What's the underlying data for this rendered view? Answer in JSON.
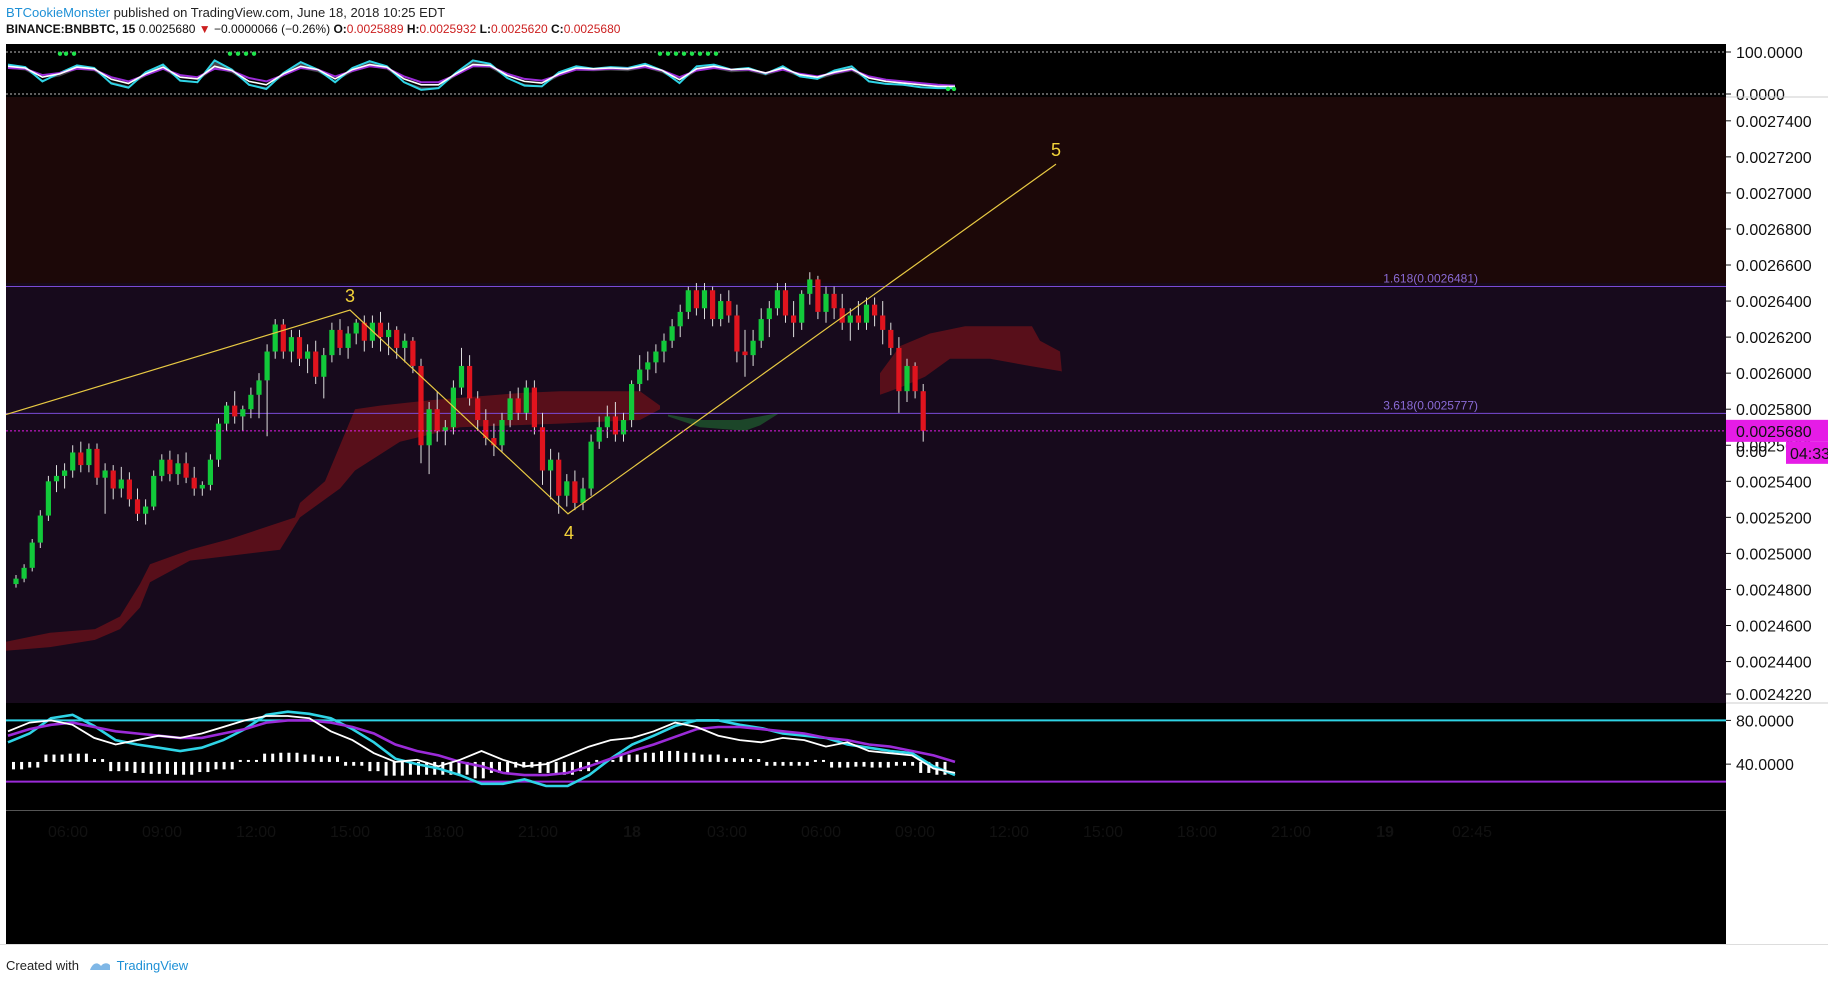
{
  "header": {
    "author": "BTCookieMonster",
    "published": "published on TradingView.com, June 18, 2018 10:25 EDT",
    "symbol": "BINANCE:BNBBTC, 15",
    "last": "0.0025680",
    "arrow": "▼",
    "change": "−0.0000066 (−0.26%)",
    "o_label": "O:",
    "o_value": "0.0025889",
    "h_label": "H:",
    "h_value": "0.0025932",
    "l_label": "L:",
    "l_value": "0.0025620",
    "c_label": "C:",
    "c_value": "0.0025680"
  },
  "footer": {
    "created_with": "Created with",
    "brand": "TradingView"
  },
  "colors": {
    "background": "#000000",
    "upper_zone": "#1c0808",
    "lower_zone": "#170a1c",
    "bull": "#12c93a",
    "bear": "#e0141e",
    "cloud": "#5c101a",
    "wave_line": "#e8c943",
    "fib_line": "#7a4ad6",
    "price_tag": "#e51ce6",
    "cyan": "#2fd4e6",
    "purple": "#9b2bd8",
    "white": "#ffffff"
  },
  "chart_data": [
    {
      "type": "line",
      "panel": "top-oscillator",
      "y_ticks": [
        "100.0000",
        "0.0000"
      ],
      "ylim": [
        0,
        100
      ],
      "series": [
        {
          "color": "cyan",
          "values": [
            70,
            64,
            30,
            50,
            68,
            62,
            25,
            15,
            52,
            70,
            32,
            28,
            80,
            58,
            22,
            12,
            50,
            76,
            58,
            28,
            62,
            78,
            66,
            28,
            10,
            14,
            50,
            80,
            72,
            38,
            20,
            18,
            52,
            66,
            60,
            64,
            62,
            72,
            56,
            26,
            66,
            70,
            58,
            62,
            48,
            66,
            42,
            36,
            56,
            66,
            30,
            24,
            22,
            16,
            14,
            14
          ]
        },
        {
          "color": "purple",
          "values": [
            62,
            60,
            45,
            50,
            60,
            58,
            40,
            30,
            45,
            60,
            45,
            40,
            60,
            55,
            38,
            30,
            45,
            62,
            58,
            42,
            55,
            66,
            62,
            42,
            28,
            28,
            45,
            66,
            66,
            48,
            36,
            32,
            45,
            58,
            58,
            60,
            60,
            64,
            56,
            40,
            56,
            62,
            58,
            58,
            50,
            58,
            48,
            42,
            50,
            58,
            42,
            34,
            30,
            26,
            22,
            20
          ]
        },
        {
          "color": "white",
          "values": [
            66,
            62,
            40,
            48,
            64,
            60,
            35,
            25,
            48,
            64,
            40,
            36,
            66,
            56,
            30,
            22,
            48,
            66,
            58,
            36,
            58,
            70,
            64,
            36,
            22,
            22,
            48,
            70,
            68,
            44,
            30,
            26,
            48,
            62,
            60,
            62,
            60,
            68,
            56,
            34,
            60,
            66,
            58,
            60,
            50,
            62,
            46,
            40,
            52,
            60,
            38,
            30,
            26,
            22,
            18,
            18
          ]
        }
      ]
    },
    {
      "type": "candlestick",
      "panel": "price",
      "y_ticks": [
        "0.0027400",
        "0.0027200",
        "0.0027000",
        "0.0026800",
        "0.0026600",
        "0.0026400",
        "0.0026200",
        "0.0026000",
        "0.0025800",
        "0.0025600",
        "0.0025400",
        "0.0025200",
        "0.0025000",
        "0.0024800",
        "0.0024600",
        "0.0024400",
        "0.0024220"
      ],
      "ylim": [
        0.002422,
        0.002746
      ],
      "x_ticks": [
        "06:00",
        "09:00",
        "12:00",
        "15:00",
        "18:00",
        "21:00",
        "18",
        "03:00",
        "06:00",
        "09:00",
        "12:00",
        "15:00",
        "18:00",
        "21:00",
        "19",
        "02:45"
      ],
      "ohlc": [
        [
          0.002483,
          0.002488,
          0.002481,
          0.002486
        ],
        [
          0.002486,
          0.002494,
          0.002484,
          0.002492
        ],
        [
          0.002492,
          0.002508,
          0.00249,
          0.002506
        ],
        [
          0.002506,
          0.002524,
          0.002503,
          0.002521
        ],
        [
          0.002521,
          0.002543,
          0.002518,
          0.00254
        ],
        [
          0.00254,
          0.002549,
          0.002534,
          0.002543
        ],
        [
          0.002543,
          0.00255,
          0.002536,
          0.002546
        ],
        [
          0.002546,
          0.00256,
          0.002542,
          0.002556
        ],
        [
          0.002556,
          0.002562,
          0.002545,
          0.002549
        ],
        [
          0.002549,
          0.002561,
          0.002545,
          0.002558
        ],
        [
          0.002558,
          0.002561,
          0.002538,
          0.002542
        ],
        [
          0.002542,
          0.00255,
          0.002522,
          0.002546
        ],
        [
          0.002546,
          0.002549,
          0.00253,
          0.002536
        ],
        [
          0.002536,
          0.002548,
          0.002531,
          0.002541
        ],
        [
          0.002541,
          0.002545,
          0.002526,
          0.00253
        ],
        [
          0.00253,
          0.002536,
          0.002518,
          0.002522
        ],
        [
          0.002522,
          0.00253,
          0.002516,
          0.002526
        ],
        [
          0.002526,
          0.002546,
          0.002524,
          0.002543
        ],
        [
          0.002543,
          0.002555,
          0.00254,
          0.002552
        ],
        [
          0.002552,
          0.002557,
          0.00254,
          0.002544
        ],
        [
          0.002544,
          0.002555,
          0.002538,
          0.00255
        ],
        [
          0.00255,
          0.002556,
          0.002539,
          0.002542
        ],
        [
          0.002542,
          0.002548,
          0.002532,
          0.002536
        ],
        [
          0.002536,
          0.00254,
          0.002532,
          0.002538
        ],
        [
          0.002538,
          0.002555,
          0.002535,
          0.002552
        ],
        [
          0.002552,
          0.002575,
          0.002548,
          0.002572
        ],
        [
          0.002572,
          0.002584,
          0.002568,
          0.002582
        ],
        [
          0.002582,
          0.00259,
          0.002572,
          0.002576
        ],
        [
          0.002576,
          0.002582,
          0.002568,
          0.00258
        ],
        [
          0.00258,
          0.002592,
          0.002575,
          0.002588
        ],
        [
          0.002588,
          0.0026,
          0.002575,
          0.002596
        ],
        [
          0.002596,
          0.002616,
          0.002565,
          0.002612
        ],
        [
          0.002612,
          0.00263,
          0.002608,
          0.002627
        ],
        [
          0.002627,
          0.00263,
          0.002608,
          0.002612
        ],
        [
          0.002612,
          0.002624,
          0.002606,
          0.00262
        ],
        [
          0.00262,
          0.002624,
          0.002604,
          0.002608
        ],
        [
          0.002608,
          0.002616,
          0.0026,
          0.002612
        ],
        [
          0.002612,
          0.002618,
          0.002594,
          0.002598
        ],
        [
          0.002598,
          0.002614,
          0.002586,
          0.00261
        ],
        [
          0.00261,
          0.002628,
          0.002606,
          0.002624
        ],
        [
          0.002624,
          0.00263,
          0.00261,
          0.002614
        ],
        [
          0.002614,
          0.002626,
          0.002608,
          0.002622
        ],
        [
          0.002622,
          0.00263,
          0.002616,
          0.002628
        ],
        [
          0.002628,
          0.002632,
          0.002612,
          0.002618
        ],
        [
          0.002618,
          0.002632,
          0.002614,
          0.002628
        ],
        [
          0.002628,
          0.002634,
          0.002612,
          0.00262
        ],
        [
          0.00262,
          0.002628,
          0.00261,
          0.002624
        ],
        [
          0.002624,
          0.002626,
          0.002608,
          0.002614
        ],
        [
          0.002614,
          0.002622,
          0.002606,
          0.002618
        ],
        [
          0.002618,
          0.00262,
          0.0026,
          0.002604
        ],
        [
          0.002604,
          0.002608,
          0.00255,
          0.00256
        ],
        [
          0.00256,
          0.002584,
          0.002544,
          0.00258
        ],
        [
          0.00258,
          0.00259,
          0.002562,
          0.002568
        ],
        [
          0.002568,
          0.002574,
          0.00256,
          0.00257
        ],
        [
          0.00257,
          0.002596,
          0.002566,
          0.002592
        ],
        [
          0.002592,
          0.002614,
          0.002588,
          0.002604
        ],
        [
          0.002604,
          0.00261,
          0.002582,
          0.002586
        ],
        [
          0.002586,
          0.00259,
          0.002568,
          0.002574
        ],
        [
          0.002574,
          0.00258,
          0.00256,
          0.002564
        ],
        [
          0.002564,
          0.002572,
          0.002554,
          0.00256
        ],
        [
          0.00256,
          0.002578,
          0.002556,
          0.002574
        ],
        [
          0.002574,
          0.00259,
          0.00257,
          0.002586
        ],
        [
          0.002586,
          0.002592,
          0.002574,
          0.002578
        ],
        [
          0.002578,
          0.002596,
          0.002574,
          0.002592
        ],
        [
          0.002592,
          0.002596,
          0.002566,
          0.00257
        ],
        [
          0.00257,
          0.002578,
          0.002538,
          0.002546
        ],
        [
          0.002546,
          0.002558,
          0.00253,
          0.002552
        ],
        [
          0.002552,
          0.002556,
          0.002522,
          0.002532
        ],
        [
          0.002532,
          0.002544,
          0.002526,
          0.00254
        ],
        [
          0.00254,
          0.002546,
          0.002524,
          0.002528
        ],
        [
          0.002528,
          0.002542,
          0.002524,
          0.002536
        ],
        [
          0.002536,
          0.002566,
          0.002532,
          0.002562
        ],
        [
          0.002562,
          0.002576,
          0.002558,
          0.00257
        ],
        [
          0.00257,
          0.002582,
          0.002564,
          0.002576
        ],
        [
          0.002576,
          0.002584,
          0.002562,
          0.002566
        ],
        [
          0.002566,
          0.002578,
          0.002562,
          0.002574
        ],
        [
          0.002574,
          0.002596,
          0.00257,
          0.002594
        ],
        [
          0.002594,
          0.00261,
          0.00259,
          0.002602
        ],
        [
          0.002602,
          0.002612,
          0.002596,
          0.002606
        ],
        [
          0.002606,
          0.002616,
          0.0026,
          0.002612
        ],
        [
          0.002612,
          0.002622,
          0.002606,
          0.002618
        ],
        [
          0.002618,
          0.00263,
          0.002614,
          0.002626
        ],
        [
          0.002626,
          0.002638,
          0.00262,
          0.002634
        ],
        [
          0.002634,
          0.002648,
          0.00263,
          0.002646
        ],
        [
          0.002646,
          0.00265,
          0.002632,
          0.002636
        ],
        [
          0.002636,
          0.00265,
          0.00263,
          0.002646
        ],
        [
          0.002646,
          0.002648,
          0.002626,
          0.00263
        ],
        [
          0.00263,
          0.002644,
          0.002626,
          0.00264
        ],
        [
          0.00264,
          0.002646,
          0.002628,
          0.002632
        ],
        [
          0.002632,
          0.002638,
          0.002606,
          0.002612
        ],
        [
          0.002612,
          0.002624,
          0.002598,
          0.00261
        ],
        [
          0.00261,
          0.002624,
          0.002604,
          0.002618
        ],
        [
          0.002618,
          0.002636,
          0.002614,
          0.00263
        ],
        [
          0.00263,
          0.00264,
          0.00262,
          0.002636
        ],
        [
          0.002636,
          0.00265,
          0.002632,
          0.002646
        ],
        [
          0.002646,
          0.00265,
          0.002628,
          0.002632
        ],
        [
          0.002632,
          0.00264,
          0.00262,
          0.002628
        ],
        [
          0.002628,
          0.002646,
          0.002624,
          0.002644
        ],
        [
          0.002644,
          0.002656,
          0.002638,
          0.002652
        ],
        [
          0.002652,
          0.002654,
          0.00263,
          0.002634
        ],
        [
          0.002634,
          0.002648,
          0.002628,
          0.002644
        ],
        [
          0.002644,
          0.002648,
          0.00263,
          0.002636
        ],
        [
          0.002636,
          0.002644,
          0.002624,
          0.002628
        ],
        [
          0.002628,
          0.002636,
          0.002618,
          0.002632
        ],
        [
          0.002632,
          0.00264,
          0.002624,
          0.002628
        ],
        [
          0.002628,
          0.002642,
          0.002624,
          0.002638
        ],
        [
          0.002638,
          0.002642,
          0.002626,
          0.002632
        ],
        [
          0.002632,
          0.00264,
          0.002616,
          0.002624
        ],
        [
          0.002624,
          0.002628,
          0.00261,
          0.002614
        ],
        [
          0.002614,
          0.00262,
          0.002578,
          0.00259
        ],
        [
          0.00259,
          0.002608,
          0.002584,
          0.002604
        ],
        [
          0.002604,
          0.002606,
          0.002586,
          0.00259
        ],
        [
          0.00259,
          0.002594,
          0.002562,
          0.002568
        ]
      ],
      "wave_labels": [
        "3",
        "4",
        "5"
      ],
      "fib_levels": [
        {
          "label": "1.618(0.0026481)",
          "price": 0.0026481
        },
        {
          "label": "3.618(0.0025777)",
          "price": 0.0025777
        }
      ],
      "last_price_label": "0.0025680",
      "last_price": 0.002568,
      "countdown": "04:33",
      "hidden_tick": "0.00"
    },
    {
      "type": "line",
      "panel": "bottom-oscillator",
      "y_ticks": [
        "80.0000",
        "40.0000"
      ],
      "ylim": [
        20,
        95
      ],
      "series": [
        {
          "color": "cyan",
          "values": [
            60,
            68,
            82,
            85,
            75,
            62,
            58,
            55,
            52,
            55,
            62,
            72,
            85,
            88,
            86,
            82,
            72,
            60,
            45,
            40,
            36,
            30,
            22,
            22,
            26,
            20,
            20,
            30,
            45,
            58,
            66,
            75,
            80,
            80,
            76,
            73,
            68,
            66,
            64,
            58,
            55,
            52,
            50,
            38,
            30
          ]
        },
        {
          "color": "purple",
          "values": [
            66,
            72,
            76,
            78,
            74,
            70,
            68,
            66,
            64,
            64,
            68,
            72,
            78,
            80,
            80,
            78,
            74,
            68,
            58,
            52,
            48,
            42,
            38,
            32,
            30,
            30,
            32,
            38,
            45,
            52,
            58,
            65,
            72,
            74,
            74,
            72,
            70,
            68,
            64,
            62,
            58,
            56,
            52,
            48,
            42
          ]
        },
        {
          "color": "white",
          "values": [
            70,
            78,
            80,
            76,
            64,
            58,
            62,
            66,
            64,
            68,
            74,
            80,
            84,
            84,
            82,
            70,
            62,
            50,
            42,
            44,
            38,
            44,
            52,
            44,
            38,
            40,
            48,
            56,
            62,
            64,
            70,
            78,
            74,
            66,
            62,
            60,
            64,
            62,
            56,
            60,
            52,
            50,
            48,
            36,
            32
          ]
        }
      ]
    }
  ]
}
